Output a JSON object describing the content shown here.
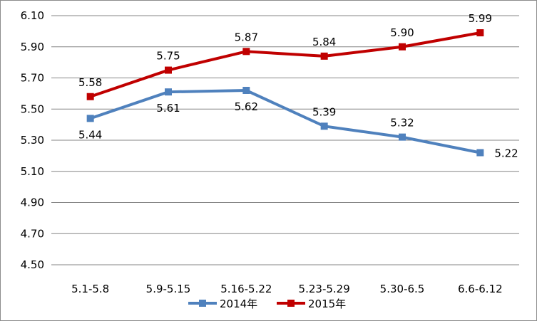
{
  "chart_data": {
    "type": "line",
    "categories": [
      "5.1-5.8",
      "5.9-5.15",
      "5.16-5.22",
      "5.23-5.29",
      "5.30-6.5",
      "6.6-6.12"
    ],
    "y_ticks": [
      "4.50",
      "4.70",
      "4.90",
      "5.10",
      "5.30",
      "5.50",
      "5.70",
      "5.90",
      "6.10"
    ],
    "ylim": [
      4.5,
      6.1
    ],
    "grid": true,
    "legend_position": "bottom",
    "series": [
      {
        "name": "2014年",
        "color": "#4f81bd",
        "marker": "square",
        "values": [
          5.44,
          5.61,
          5.62,
          5.39,
          5.32,
          5.22
        ],
        "labels": [
          "5.44",
          "5.61",
          "5.62",
          "5.39",
          "5.32",
          "5.22"
        ]
      },
      {
        "name": "2015年",
        "color": "#c00000",
        "marker": "square",
        "values": [
          5.58,
          5.75,
          5.87,
          5.84,
          5.9,
          5.99
        ],
        "labels": [
          "5.58",
          "5.75",
          "5.87",
          "5.84",
          "5.90",
          "5.99"
        ]
      }
    ]
  }
}
